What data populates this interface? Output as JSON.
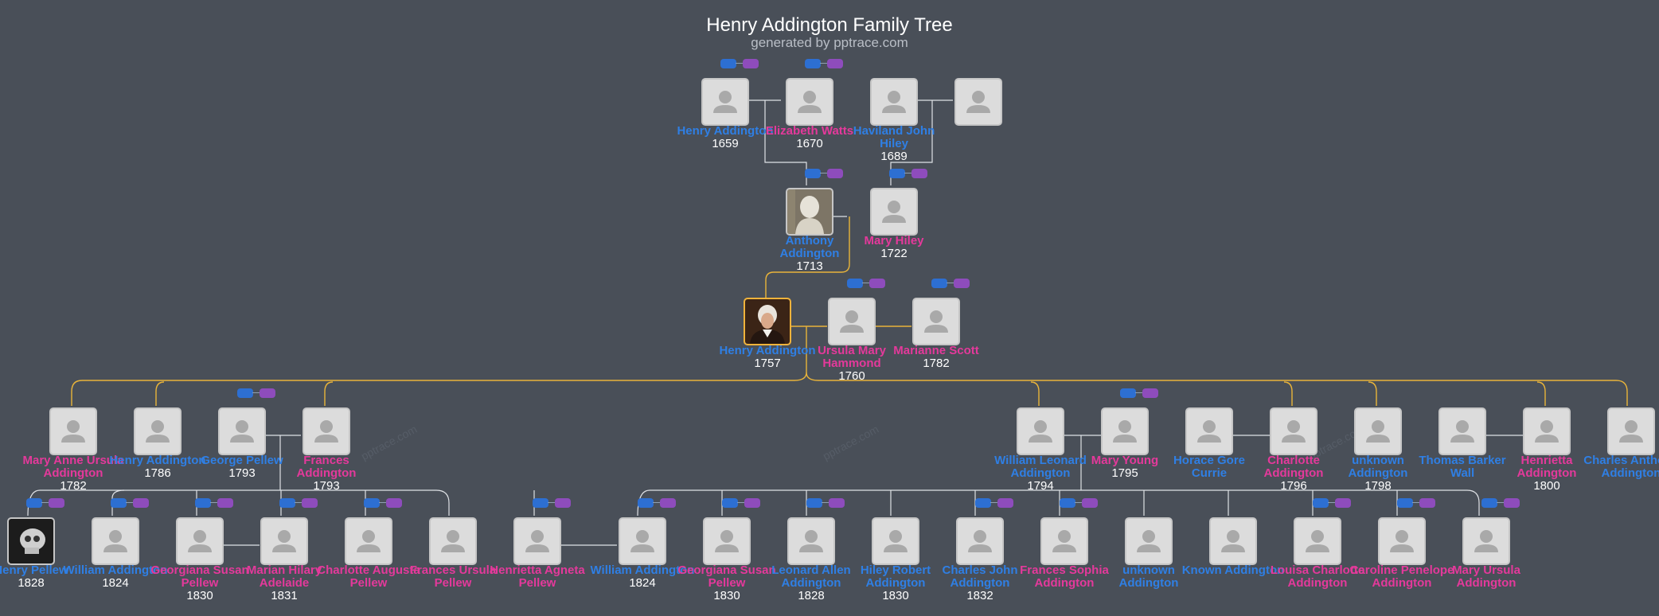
{
  "header": {
    "title": "Henry Addington Family Tree",
    "subtitle": "generated by pptrace.com"
  },
  "watermarks": [
    "pptrace.com",
    "pptrace.com",
    "pptrace.com"
  ],
  "people": [
    {
      "id": "p1",
      "name": "Henry Addington",
      "year": "1659",
      "gender": "m",
      "photo": "placeholder",
      "badges": true
    },
    {
      "id": "p2",
      "name": "Elizabeth Watts",
      "year": "1670",
      "gender": "f",
      "photo": "placeholder",
      "badges": true
    },
    {
      "id": "p3",
      "name": "Haviland John Hiley",
      "year": "1689",
      "gender": "m",
      "photo": "placeholder",
      "badges": false
    },
    {
      "id": "p4",
      "name": "",
      "year": "",
      "gender": "f",
      "photo": "placeholder",
      "badges": false
    },
    {
      "id": "p5",
      "name": "Anthony Addington",
      "year": "1713",
      "gender": "m",
      "photo": "bust",
      "badges": true
    },
    {
      "id": "p6",
      "name": "Mary Hiley",
      "year": "1722",
      "gender": "f",
      "photo": "placeholder",
      "badges": true
    },
    {
      "id": "p7",
      "name": "Henry Addington",
      "year": "1757",
      "gender": "m",
      "photo": "portrait",
      "badges": false,
      "selected": true
    },
    {
      "id": "p8",
      "name": "Ursula Mary Hammond",
      "year": "1760",
      "gender": "f",
      "photo": "placeholder",
      "badges": true
    },
    {
      "id": "p9",
      "name": "Marianne Scott",
      "year": "1782",
      "gender": "f",
      "photo": "placeholder",
      "badges": true
    },
    {
      "id": "p10",
      "name": "Mary Anne Ursula Addington",
      "year": "1782",
      "gender": "f",
      "photo": "placeholder",
      "badges": false
    },
    {
      "id": "p11",
      "name": "Henry Addington",
      "year": "1786",
      "gender": "m",
      "photo": "placeholder",
      "badges": false
    },
    {
      "id": "p12",
      "name": "George Pellew",
      "year": "1793",
      "gender": "m",
      "photo": "placeholder",
      "badges": true
    },
    {
      "id": "p13",
      "name": "Frances Addington",
      "year": "1793",
      "gender": "f",
      "photo": "placeholder",
      "badges": false
    },
    {
      "id": "p14",
      "name": "William Leonard Addington",
      "year": "1794",
      "gender": "m",
      "photo": "placeholder",
      "badges": false
    },
    {
      "id": "p15",
      "name": "Mary Young",
      "year": "1795",
      "gender": "f",
      "photo": "placeholder",
      "badges": true
    },
    {
      "id": "p16",
      "name": "Horace Gore Currie",
      "year": "",
      "gender": "m",
      "photo": "placeholder",
      "badges": false
    },
    {
      "id": "p17",
      "name": "Charlotte Addington",
      "year": "1796",
      "gender": "f",
      "photo": "placeholder",
      "badges": false
    },
    {
      "id": "p18",
      "name": "unknown Addington",
      "year": "1798",
      "gender": "m",
      "photo": "placeholder",
      "badges": false
    },
    {
      "id": "p19",
      "name": "Thomas Barker Wall",
      "year": "",
      "gender": "m",
      "photo": "placeholder",
      "badges": false
    },
    {
      "id": "p20",
      "name": "Henrietta Addington",
      "year": "1800",
      "gender": "f",
      "photo": "placeholder",
      "badges": false
    },
    {
      "id": "p21",
      "name": "Charles Anthony Addington",
      "year": "",
      "gender": "m",
      "photo": "placeholder",
      "badges": false
    },
    {
      "id": "p22",
      "name": "Henry Pellew",
      "year": "1828",
      "gender": "m",
      "photo": "skull",
      "badges": true
    },
    {
      "id": "p23",
      "name": "William Addington",
      "year": "1824",
      "gender": "m",
      "photo": "placeholder",
      "badges": true
    },
    {
      "id": "p24",
      "name": "Georgiana Susan Pellew",
      "year": "1830",
      "gender": "f",
      "photo": "placeholder",
      "badges": true
    },
    {
      "id": "p25",
      "name": "Marian Hilary Adelaide",
      "year": "1831",
      "gender": "f",
      "photo": "placeholder",
      "badges": true
    },
    {
      "id": "p26",
      "name": "Charlotte Augusta Pellew",
      "year": "",
      "gender": "f",
      "photo": "placeholder",
      "badges": true
    },
    {
      "id": "p27",
      "name": "Frances Ursula Pellew",
      "year": "",
      "gender": "f",
      "photo": "placeholder",
      "badges": false
    },
    {
      "id": "p28",
      "name": "Henrietta Agneta Pellew",
      "year": "",
      "gender": "f",
      "photo": "placeholder",
      "badges": true
    },
    {
      "id": "p29",
      "name": "William Addington",
      "year": "1824",
      "gender": "m",
      "photo": "placeholder",
      "badges": true
    },
    {
      "id": "p30",
      "name": "Georgiana Susan Pellew",
      "year": "1830",
      "gender": "f",
      "photo": "placeholder",
      "badges": true
    },
    {
      "id": "p31",
      "name": "Leonard Allen Addington",
      "year": "1828",
      "gender": "m",
      "photo": "placeholder",
      "badges": true
    },
    {
      "id": "p32",
      "name": "Hiley Robert Addington",
      "year": "1830",
      "gender": "m",
      "photo": "placeholder",
      "badges": false
    },
    {
      "id": "p33",
      "name": "Charles John Addington",
      "year": "1832",
      "gender": "m",
      "photo": "placeholder",
      "badges": true
    },
    {
      "id": "p34",
      "name": "Frances Sophia Addington",
      "year": "",
      "gender": "f",
      "photo": "placeholder",
      "badges": true
    },
    {
      "id": "p35",
      "name": "unknown Addington",
      "year": "",
      "gender": "m",
      "photo": "placeholder",
      "badges": false
    },
    {
      "id": "p36",
      "name": "Known Addington",
      "year": "",
      "gender": "m",
      "photo": "placeholder",
      "badges": false
    },
    {
      "id": "p37",
      "name": "Louisa Charlotte Addington",
      "year": "",
      "gender": "f",
      "photo": "placeholder",
      "badges": true
    },
    {
      "id": "p38",
      "name": "Caroline Penelope Addington",
      "year": "",
      "gender": "f",
      "photo": "placeholder",
      "badges": true
    },
    {
      "id": "p39",
      "name": "Mary Ursula Addington",
      "year": "",
      "gender": "f",
      "photo": "placeholder",
      "badges": true
    }
  ]
}
